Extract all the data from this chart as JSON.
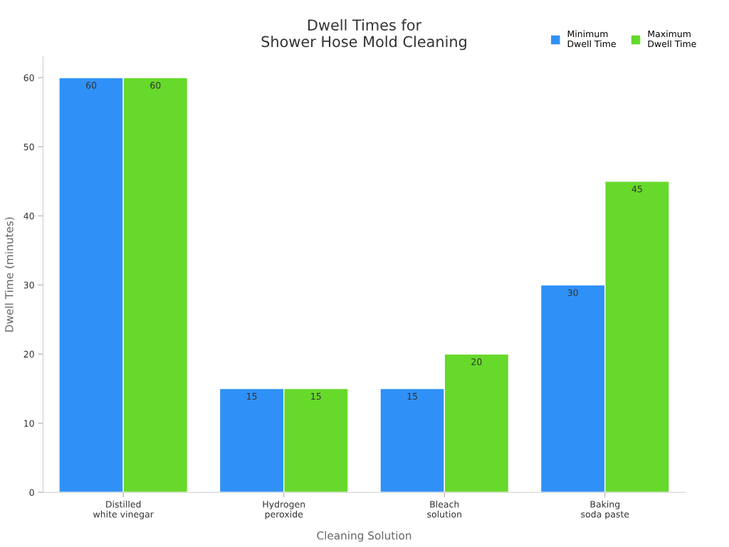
{
  "chart_data": {
    "type": "bar",
    "title": "Dwell Times for\nShower Hose Mold Cleaning",
    "xlabel": "Cleaning Solution",
    "ylabel": "Dwell Time (minutes)",
    "categories": [
      "Distilled\nwhite vinegar",
      "Hydrogen\nperoxide",
      "Bleach\nsolution",
      "Baking\nsoda paste"
    ],
    "series": [
      {
        "name": "Minimum\nDwell Time",
        "color": "#2f91f7",
        "values": [
          60,
          15,
          15,
          30
        ]
      },
      {
        "name": "Maximum\nDwell Time",
        "color": "#66d92a",
        "values": [
          60,
          15,
          20,
          45
        ]
      }
    ],
    "ylim": [
      0,
      63
    ],
    "yticks": [
      0,
      10,
      20,
      30,
      40,
      50,
      60
    ],
    "grid": false,
    "legend": "top right",
    "data_labels": true
  }
}
